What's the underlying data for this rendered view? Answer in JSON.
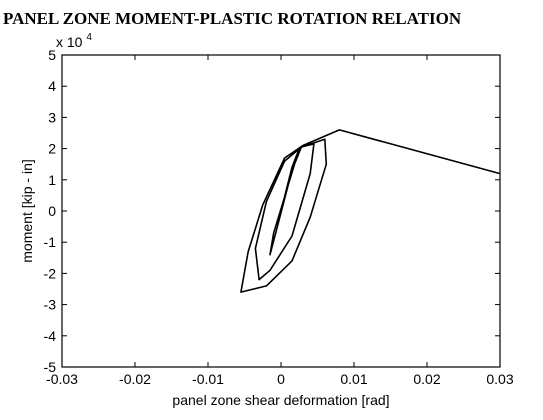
{
  "chart_data": {
    "type": "line",
    "title": "PANEL ZONE MOMENT-PLASTIC ROTATION RELATION",
    "xlabel": "panel zone shear deformation [rad]",
    "ylabel": "moment  [kip - in]",
    "y_multiplier_label": "x 10",
    "y_multiplier_exponent": "4",
    "xlim": [
      -0.03,
      0.03
    ],
    "ylim": [
      -5,
      5
    ],
    "x_ticks": [
      -0.03,
      -0.02,
      -0.01,
      0,
      0.01,
      0.02,
      0.03
    ],
    "x_tick_labels": [
      "-0.03",
      "-0.02",
      "-0.01",
      "0",
      "0.01",
      "0.02",
      "0.03"
    ],
    "y_ticks": [
      -5,
      -4,
      -3,
      -2,
      -1,
      0,
      1,
      2,
      3,
      4,
      5
    ],
    "y_tick_labels": [
      "-5",
      "-4",
      "-3",
      "-2",
      "-1",
      "0",
      "1",
      "2",
      "3",
      "4",
      "5"
    ],
    "grid": false,
    "line_color": "#000000",
    "series": [
      {
        "values_note_units": "x in rad, y in 10^4 kip-in",
        "points": [
          [
            0,
            0
          ],
          [
            0.0015,
            1.4
          ],
          [
            0.0025,
            2.0
          ],
          [
            0.0012,
            1.0
          ],
          [
            -0.001,
            -0.7
          ],
          [
            -0.0015,
            -1.4
          ],
          [
            -0.0005,
            -0.5
          ],
          [
            0.0015,
            1.3
          ],
          [
            0.0028,
            2.05
          ],
          [
            0.0045,
            2.15
          ],
          [
            0.004,
            1.2
          ],
          [
            0.0015,
            -0.8
          ],
          [
            -0.0015,
            -1.9
          ],
          [
            -0.003,
            -2.2
          ],
          [
            -0.0035,
            -1.2
          ],
          [
            -0.002,
            0.3
          ],
          [
            0.0005,
            1.6
          ],
          [
            0.0028,
            2.05
          ],
          [
            0.006,
            2.3
          ],
          [
            0.0062,
            1.5
          ],
          [
            0.004,
            -0.2
          ],
          [
            0.0015,
            -1.6
          ],
          [
            -0.002,
            -2.4
          ],
          [
            -0.0055,
            -2.6
          ],
          [
            -0.0045,
            -1.3
          ],
          [
            -0.0025,
            0.2
          ],
          [
            0.0005,
            1.7
          ],
          [
            0.003,
            2.1
          ],
          [
            0.008,
            2.6
          ],
          [
            0.03,
            1.2
          ]
        ]
      }
    ]
  }
}
